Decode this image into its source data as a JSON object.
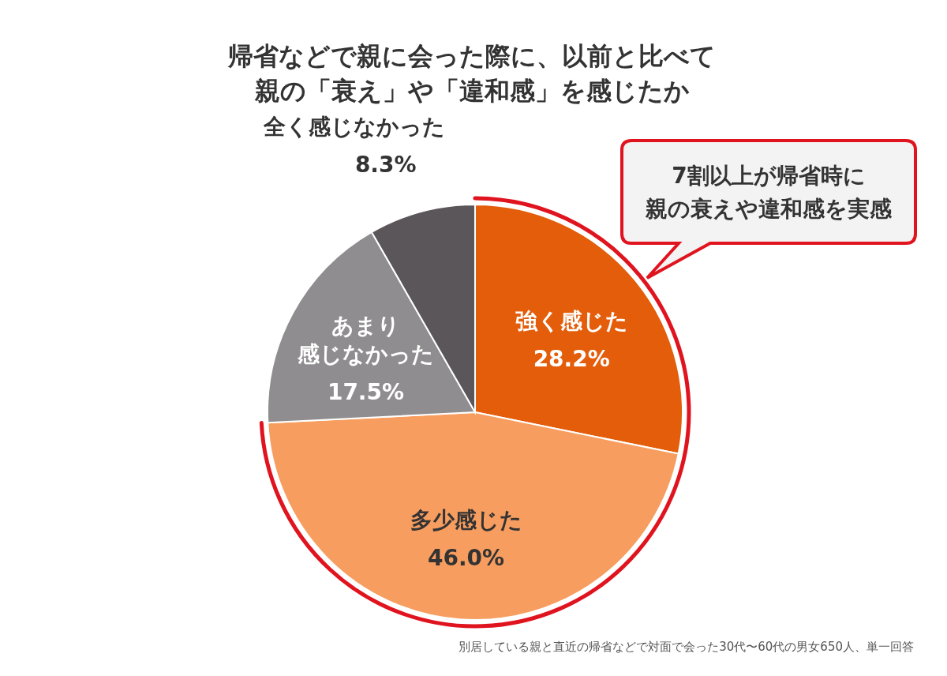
{
  "chart_data": {
    "type": "pie",
    "title": "帰省などで親に会った際に、以前と比べて親の「衰え」や「違和感」を感じたか",
    "categories": [
      "強く感じた",
      "多少感じた",
      "あまり感じなかった",
      "全く感じなかった"
    ],
    "values": [
      28.2,
      46.0,
      17.5,
      8.3
    ],
    "colors": [
      "#e35d0a",
      "#f79d5f",
      "#8f8d8f",
      "#5a5659"
    ],
    "value_labels": [
      "28.2%",
      "46.0%",
      "17.5%",
      "8.3%"
    ],
    "annotations": [
      "7割以上が帰省時に親の衰えや違和感を実感",
      "別居している親と直近の帰省などで対面で会った30代〜60代の男女650人、単一回答"
    ],
    "legend": false
  }
}
